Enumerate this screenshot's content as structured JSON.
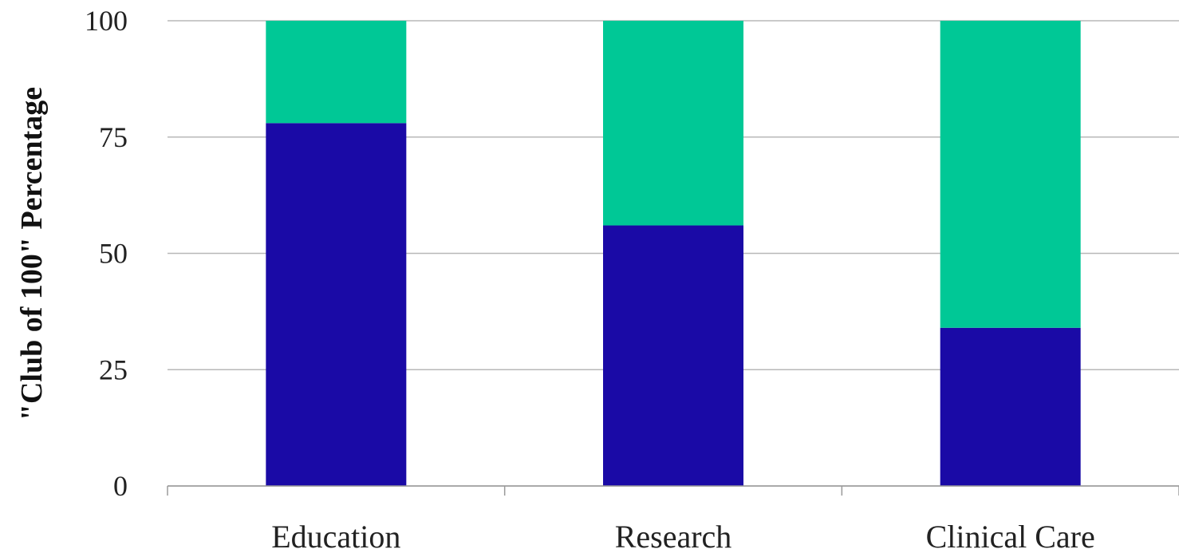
{
  "chart_data": {
    "type": "bar",
    "stacked": true,
    "categories": [
      "Education",
      "Research",
      "Clinical Care"
    ],
    "series": [
      {
        "color": "#1a0aa6",
        "values": [
          78,
          56,
          34
        ]
      },
      {
        "color": "#00c896",
        "values": [
          22,
          44,
          66
        ]
      }
    ],
    "title": "",
    "xlabel": "",
    "ylabel": "\"Club of 100\" Percentage",
    "ylim": [
      0,
      100
    ],
    "yticks": [
      0,
      25,
      50,
      75,
      100
    ],
    "ytick_labels": [
      "0",
      "25",
      "50",
      "75",
      "100"
    ],
    "grid": true,
    "legend": "none",
    "colors": {
      "grid": "#b8b8b8",
      "axis": "#9a9a9a",
      "text": "#222222"
    }
  }
}
